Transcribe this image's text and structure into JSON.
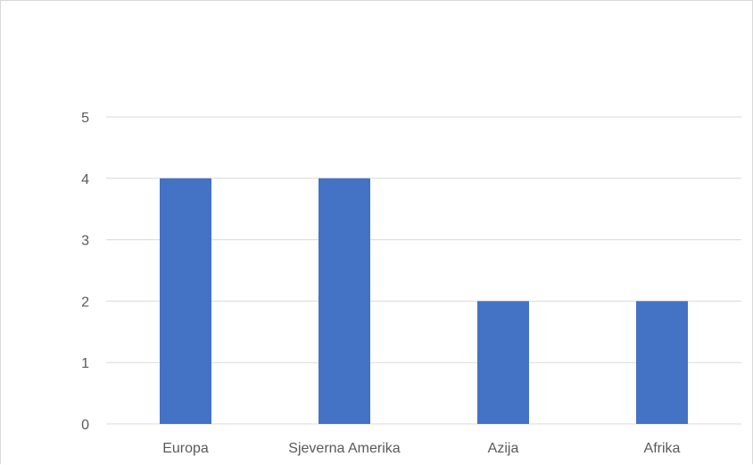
{
  "chart_data": {
    "type": "bar",
    "categories": [
      "Europa",
      "Sjeverna Amerika",
      "Azija",
      "Afrika"
    ],
    "values": [
      4,
      4,
      2,
      2
    ],
    "ylim": [
      0,
      5
    ],
    "yticks": [
      "0",
      "1",
      "2",
      "3",
      "4",
      "5"
    ],
    "grid": true,
    "legend": "none",
    "bar_color": "#4472c4",
    "grid_color": "#d9d9d9"
  }
}
